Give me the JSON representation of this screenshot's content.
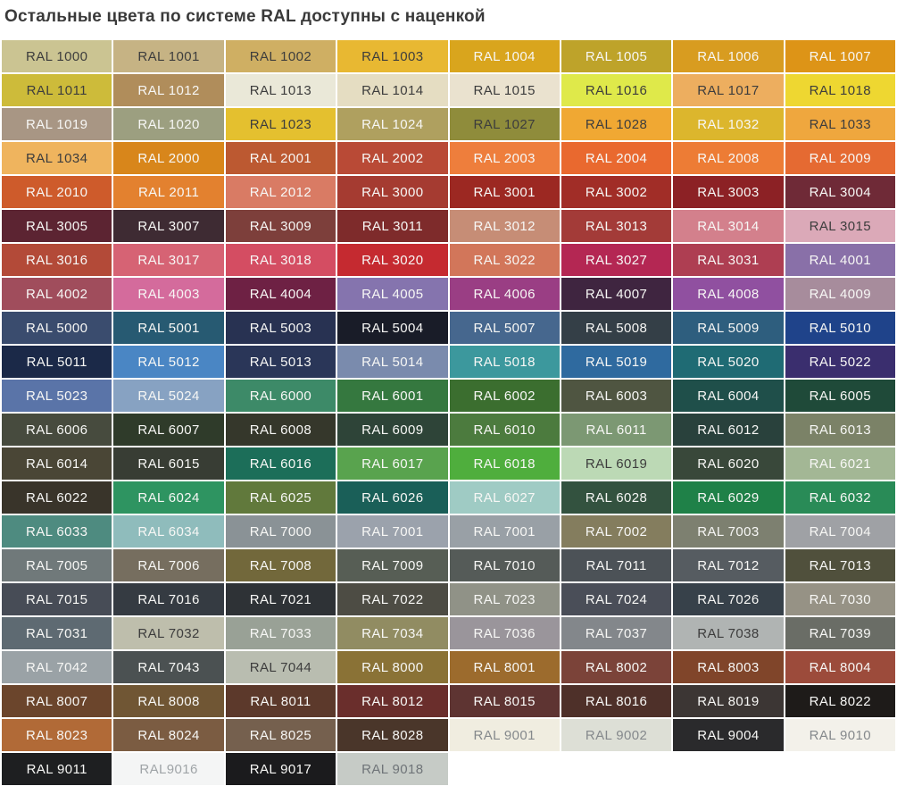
{
  "page": {
    "title": "Остальные цвета по системе RAL доступны с наценкой",
    "title_color": "#3A3A3A",
    "background": "#FFFFFF"
  },
  "grid": {
    "columns": 8,
    "rows": [
      [
        {
          "code": "RAL 1000",
          "bg": "#CBC492",
          "fg": "#3D3D3D"
        },
        {
          "code": "RAL 1001",
          "bg": "#C6B384",
          "fg": "#3D3D3D"
        },
        {
          "code": "RAL 1002",
          "bg": "#CFAF63",
          "fg": "#3D3D3D"
        },
        {
          "code": "RAL 1003",
          "bg": "#E8B832",
          "fg": "#3D3D3D"
        },
        {
          "code": "RAL 1004",
          "bg": "#D9A51D",
          "fg": "#F7F7F5"
        },
        {
          "code": "RAL 1005",
          "bg": "#BEA32A",
          "fg": "#F7F7F5"
        },
        {
          "code": "RAL 1006",
          "bg": "#D89C20",
          "fg": "#F7F7F5"
        },
        {
          "code": "RAL 1007",
          "bg": "#DD9417",
          "fg": "#F7F7F5"
        }
      ],
      [
        {
          "code": "RAL 1011",
          "bg": "#CDBB3A",
          "fg": "#3D3D3D"
        },
        {
          "code": "RAL 1012",
          "bg": "#B08D5B",
          "fg": "#F7F7F5"
        },
        {
          "code": "RAL 1013",
          "bg": "#EAE8D8",
          "fg": "#3D3D3D"
        },
        {
          "code": "RAL 1014",
          "bg": "#E5DDC2",
          "fg": "#3D3D3D"
        },
        {
          "code": "RAL 1015",
          "bg": "#EAE2CF",
          "fg": "#3D3D3D"
        },
        {
          "code": "RAL 1016",
          "bg": "#DFE94A",
          "fg": "#3D3D3D"
        },
        {
          "code": "RAL 1017",
          "bg": "#EDAE5F",
          "fg": "#3D3D3D"
        },
        {
          "code": "RAL 1018",
          "bg": "#EED731",
          "fg": "#3D3D3D"
        }
      ],
      [
        {
          "code": "RAL 1019",
          "bg": "#A89684",
          "fg": "#F7F7F5"
        },
        {
          "code": "RAL 1020",
          "bg": "#9C9F80",
          "fg": "#F7F7F5"
        },
        {
          "code": "RAL 1023",
          "bg": "#E4C02F",
          "fg": "#3D3D3D"
        },
        {
          "code": "RAL 1024",
          "bg": "#AFA05F",
          "fg": "#F7F7F5"
        },
        {
          "code": "RAL 1027",
          "bg": "#8F8C3B",
          "fg": "#3D3D3D"
        },
        {
          "code": "RAL 1028",
          "bg": "#F0A833",
          "fg": "#3D3D3D"
        },
        {
          "code": "RAL 1032",
          "bg": "#DCB62D",
          "fg": "#F7F7F5"
        },
        {
          "code": "RAL 1033",
          "bg": "#EFA73E",
          "fg": "#3D3D3D"
        }
      ],
      [
        {
          "code": "RAL 1034",
          "bg": "#EFB45E",
          "fg": "#3D3D3D"
        },
        {
          "code": "RAL 2000",
          "bg": "#D8861B",
          "fg": "#F7F7F5"
        },
        {
          "code": "RAL 2001",
          "bg": "#BC5931",
          "fg": "#F7F7F5"
        },
        {
          "code": "RAL 2002",
          "bg": "#B94A36",
          "fg": "#F7F7F5"
        },
        {
          "code": "RAL 2003",
          "bg": "#EE7E3C",
          "fg": "#F7F7F5"
        },
        {
          "code": "RAL 2004",
          "bg": "#E9692F",
          "fg": "#F7F7F5"
        },
        {
          "code": "RAL 2008",
          "bg": "#ED7C35",
          "fg": "#F7F7F5"
        },
        {
          "code": "RAL 2009",
          "bg": "#E56A32",
          "fg": "#F7F7F5"
        }
      ],
      [
        {
          "code": "RAL 2010",
          "bg": "#CE5B2B",
          "fg": "#F7F7F5"
        },
        {
          "code": "RAL 2011",
          "bg": "#E3812F",
          "fg": "#F7F7F5"
        },
        {
          "code": "RAL 2012",
          "bg": "#D97B64",
          "fg": "#F7F7F5"
        },
        {
          "code": "RAL 3000",
          "bg": "#A53B31",
          "fg": "#F7F7F5"
        },
        {
          "code": "RAL 3001",
          "bg": "#9C2822",
          "fg": "#F7F7F5"
        },
        {
          "code": "RAL 3002",
          "bg": "#A12D27",
          "fg": "#F7F7F5"
        },
        {
          "code": "RAL 3003",
          "bg": "#8C2125",
          "fg": "#F7F7F5"
        },
        {
          "code": "RAL 3004",
          "bg": "#6F2A37",
          "fg": "#F7F7F5"
        }
      ],
      [
        {
          "code": "RAL 3005",
          "bg": "#5C2432",
          "fg": "#F7F7F5"
        },
        {
          "code": "RAL 3007",
          "bg": "#3E2B33",
          "fg": "#F7F7F5"
        },
        {
          "code": "RAL 3009",
          "bg": "#7D3F3B",
          "fg": "#F7F7F5"
        },
        {
          "code": "RAL 3011",
          "bg": "#7E2B2B",
          "fg": "#F7F7F5"
        },
        {
          "code": "RAL 3012",
          "bg": "#C68D76",
          "fg": "#F7F7F5"
        },
        {
          "code": "RAL 3013",
          "bg": "#A33B38",
          "fg": "#F7F7F5"
        },
        {
          "code": "RAL 3014",
          "bg": "#D3808C",
          "fg": "#F7F7F5"
        },
        {
          "code": "RAL 3015",
          "bg": "#DBA9B8",
          "fg": "#3D3D3D"
        }
      ],
      [
        {
          "code": "RAL 3016",
          "bg": "#B34A38",
          "fg": "#F7F7F5"
        },
        {
          "code": "RAL 3017",
          "bg": "#D66374",
          "fg": "#F7F7F5"
        },
        {
          "code": "RAL 3018",
          "bg": "#D44D62",
          "fg": "#F7F7F5"
        },
        {
          "code": "RAL 3020",
          "bg": "#C52A30",
          "fg": "#F7F7F5"
        },
        {
          "code": "RAL 3022",
          "bg": "#D2765A",
          "fg": "#F7F7F5"
        },
        {
          "code": "RAL 3027",
          "bg": "#B42753",
          "fg": "#F7F7F5"
        },
        {
          "code": "RAL 3031",
          "bg": "#AE3E52",
          "fg": "#F7F7F5"
        },
        {
          "code": "RAL 4001",
          "bg": "#8970A8",
          "fg": "#F7F7F5"
        }
      ],
      [
        {
          "code": "RAL 4002",
          "bg": "#A04D5C",
          "fg": "#F7F7F5"
        },
        {
          "code": "RAL 4003",
          "bg": "#D46B9C",
          "fg": "#F7F7F5"
        },
        {
          "code": "RAL 4004",
          "bg": "#6E2144",
          "fg": "#F7F7F5"
        },
        {
          "code": "RAL 4005",
          "bg": "#8574AE",
          "fg": "#F7F7F5"
        },
        {
          "code": "RAL 4006",
          "bg": "#9A3E84",
          "fg": "#F7F7F5"
        },
        {
          "code": "RAL 4007",
          "bg": "#3F2540",
          "fg": "#F7F7F5"
        },
        {
          "code": "RAL 4008",
          "bg": "#9050A0",
          "fg": "#F7F7F5"
        },
        {
          "code": "RAL 4009",
          "bg": "#A78C9C",
          "fg": "#F7F7F5"
        }
      ],
      [
        {
          "code": "RAL 5000",
          "bg": "#3A4C6E",
          "fg": "#F7F7F5"
        },
        {
          "code": "RAL 5001",
          "bg": "#275A72",
          "fg": "#F7F7F5"
        },
        {
          "code": "RAL 5003",
          "bg": "#283252",
          "fg": "#F7F7F5"
        },
        {
          "code": "RAL 5004",
          "bg": "#191C28",
          "fg": "#F7F7F5"
        },
        {
          "code": "RAL 5007",
          "bg": "#46678E",
          "fg": "#F7F7F5"
        },
        {
          "code": "RAL 5008",
          "bg": "#343F47",
          "fg": "#F7F7F5"
        },
        {
          "code": "RAL 5009",
          "bg": "#2E5E7E",
          "fg": "#F7F7F5"
        },
        {
          "code": "RAL 5010",
          "bg": "#1F438A",
          "fg": "#F7F7F5"
        }
      ],
      [
        {
          "code": "RAL 5011",
          "bg": "#1B2948",
          "fg": "#F7F7F5"
        },
        {
          "code": "RAL 5012",
          "bg": "#4A86C4",
          "fg": "#F7F7F5"
        },
        {
          "code": "RAL 5013",
          "bg": "#2A3658",
          "fg": "#F7F7F5"
        },
        {
          "code": "RAL 5014",
          "bg": "#7A8BAD",
          "fg": "#F7F7F5"
        },
        {
          "code": "RAL 5018",
          "bg": "#3C989D",
          "fg": "#F7F7F5"
        },
        {
          "code": "RAL 5019",
          "bg": "#2F6A9F",
          "fg": "#F7F7F5"
        },
        {
          "code": "RAL 5020",
          "bg": "#1F6B74",
          "fg": "#F7F7F5"
        },
        {
          "code": "RAL 5022",
          "bg": "#3A2E6E",
          "fg": "#F7F7F5"
        }
      ],
      [
        {
          "code": "RAL 5023",
          "bg": "#5A74A8",
          "fg": "#F7F7F5"
        },
        {
          "code": "RAL 5024",
          "bg": "#87A2C2",
          "fg": "#F7F7F5"
        },
        {
          "code": "RAL 6000",
          "bg": "#3D8A68",
          "fg": "#F7F7F5"
        },
        {
          "code": "RAL 6001",
          "bg": "#35783F",
          "fg": "#F7F7F5"
        },
        {
          "code": "RAL 6002",
          "bg": "#3B6E2F",
          "fg": "#F7F7F5"
        },
        {
          "code": "RAL 6003",
          "bg": "#4F5541",
          "fg": "#F7F7F5"
        },
        {
          "code": "RAL 6004",
          "bg": "#1F4F4A",
          "fg": "#F7F7F5"
        },
        {
          "code": "RAL 6005",
          "bg": "#1F4A39",
          "fg": "#F7F7F5"
        }
      ],
      [
        {
          "code": "RAL 6006",
          "bg": "#474B3E",
          "fg": "#F7F7F5"
        },
        {
          "code": "RAL 6007",
          "bg": "#2F3B2A",
          "fg": "#F7F7F5"
        },
        {
          "code": "RAL 6008",
          "bg": "#35372B",
          "fg": "#F7F7F5"
        },
        {
          "code": "RAL 6009",
          "bg": "#2E4438",
          "fg": "#F7F7F5"
        },
        {
          "code": "RAL 6010",
          "bg": "#4C7B3E",
          "fg": "#F7F7F5"
        },
        {
          "code": "RAL 6011",
          "bg": "#7C9873",
          "fg": "#F7F7F5"
        },
        {
          "code": "RAL 6012",
          "bg": "#29413C",
          "fg": "#F7F7F5"
        },
        {
          "code": "RAL 6013",
          "bg": "#7B8267",
          "fg": "#F7F7F5"
        }
      ],
      [
        {
          "code": "RAL 6014",
          "bg": "#4A4636",
          "fg": "#F7F7F5"
        },
        {
          "code": "RAL 6015",
          "bg": "#383D34",
          "fg": "#F7F7F5"
        },
        {
          "code": "RAL 6016",
          "bg": "#1C6E59",
          "fg": "#F7F7F5"
        },
        {
          "code": "RAL 6017",
          "bg": "#59A34E",
          "fg": "#F7F7F5"
        },
        {
          "code": "RAL 6018",
          "bg": "#4FAE3D",
          "fg": "#F7F7F5"
        },
        {
          "code": "RAL 6019",
          "bg": "#BCD9B5",
          "fg": "#3D3D3D"
        },
        {
          "code": "RAL 6020",
          "bg": "#39483A",
          "fg": "#F7F7F5"
        },
        {
          "code": "RAL 6021",
          "bg": "#A3B795",
          "fg": "#F7F7F5"
        }
      ],
      [
        {
          "code": "RAL 6022",
          "bg": "#39342A",
          "fg": "#F7F7F5"
        },
        {
          "code": "RAL 6024",
          "bg": "#2E9461",
          "fg": "#F7F7F5"
        },
        {
          "code": "RAL 6025",
          "bg": "#61793C",
          "fg": "#F7F7F5"
        },
        {
          "code": "RAL 6026",
          "bg": "#1A5F58",
          "fg": "#F7F7F5"
        },
        {
          "code": "RAL 6027",
          "bg": "#9FCBC4",
          "fg": "#F7F7F5"
        },
        {
          "code": "RAL 6028",
          "bg": "#33523F",
          "fg": "#F7F7F5"
        },
        {
          "code": "RAL 6029",
          "bg": "#1F8148",
          "fg": "#F7F7F5"
        },
        {
          "code": "RAL 6032",
          "bg": "#298B57",
          "fg": "#F7F7F5"
        }
      ],
      [
        {
          "code": "RAL 6033",
          "bg": "#4E8B80",
          "fg": "#F7F7F5"
        },
        {
          "code": "RAL 6034",
          "bg": "#8FBCBC",
          "fg": "#F7F7F5"
        },
        {
          "code": "RAL 7000",
          "bg": "#8A9296",
          "fg": "#F7F7F5"
        },
        {
          "code": "RAL 7001",
          "bg": "#9BA2AC",
          "fg": "#F7F7F5"
        },
        {
          "code": "RAL 7001",
          "bg": "#99A0A6",
          "fg": "#F7F7F5"
        },
        {
          "code": "RAL 7002",
          "bg": "#847D5E",
          "fg": "#F7F7F5"
        },
        {
          "code": "RAL 7003",
          "bg": "#7D8070",
          "fg": "#F7F7F5"
        },
        {
          "code": "RAL 7004",
          "bg": "#9FA1A5",
          "fg": "#F7F7F5"
        }
      ],
      [
        {
          "code": "RAL 7005",
          "bg": "#70797A",
          "fg": "#F7F7F5"
        },
        {
          "code": "RAL 7006",
          "bg": "#766E5F",
          "fg": "#F7F7F5"
        },
        {
          "code": "RAL 7008",
          "bg": "#72683B",
          "fg": "#F7F7F5"
        },
        {
          "code": "RAL 7009",
          "bg": "#575E55",
          "fg": "#F7F7F5"
        },
        {
          "code": "RAL 7010",
          "bg": "#555B58",
          "fg": "#F7F7F5"
        },
        {
          "code": "RAL 7011",
          "bg": "#4C5257",
          "fg": "#F7F7F5"
        },
        {
          "code": "RAL 7012",
          "bg": "#565C61",
          "fg": "#F7F7F5"
        },
        {
          "code": "RAL 7013",
          "bg": "#50503C",
          "fg": "#F7F7F5"
        }
      ],
      [
        {
          "code": "RAL 7015",
          "bg": "#474C56",
          "fg": "#F7F7F5"
        },
        {
          "code": "RAL 7016",
          "bg": "#353B42",
          "fg": "#F7F7F5"
        },
        {
          "code": "RAL 7021",
          "bg": "#2E3236",
          "fg": "#F7F7F5"
        },
        {
          "code": "RAL 7022",
          "bg": "#4D4C44",
          "fg": "#F7F7F5"
        },
        {
          "code": "RAL 7023",
          "bg": "#909287",
          "fg": "#F7F7F5"
        },
        {
          "code": "RAL 7024",
          "bg": "#4A4E58",
          "fg": "#F7F7F5"
        },
        {
          "code": "RAL 7026",
          "bg": "#37414A",
          "fg": "#F7F7F5"
        },
        {
          "code": "RAL 7030",
          "bg": "#969285",
          "fg": "#F7F7F5"
        }
      ],
      [
        {
          "code": "RAL 7031",
          "bg": "#5E6A72",
          "fg": "#F7F7F5"
        },
        {
          "code": "RAL 7032",
          "bg": "#BEBEAC",
          "fg": "#3D3D3D"
        },
        {
          "code": "RAL 7033",
          "bg": "#99A196",
          "fg": "#F7F7F5"
        },
        {
          "code": "RAL 7034",
          "bg": "#918C62",
          "fg": "#F7F7F5"
        },
        {
          "code": "RAL 7036",
          "bg": "#9A959B",
          "fg": "#F7F7F5"
        },
        {
          "code": "RAL 7037",
          "bg": "#83878B",
          "fg": "#F7F7F5"
        },
        {
          "code": "RAL 7038",
          "bg": "#B0B4B3",
          "fg": "#3D3D3D"
        },
        {
          "code": "RAL 7039",
          "bg": "#6A6D66",
          "fg": "#F7F7F5"
        }
      ],
      [
        {
          "code": "RAL 7042",
          "bg": "#9AA2A6",
          "fg": "#F7F7F5"
        },
        {
          "code": "RAL 7043",
          "bg": "#4B5152",
          "fg": "#F7F7F5"
        },
        {
          "code": "RAL 7044",
          "bg": "#B9BDB0",
          "fg": "#3D3D3D"
        },
        {
          "code": "RAL 8000",
          "bg": "#8A7236",
          "fg": "#F7F7F5"
        },
        {
          "code": "RAL 8001",
          "bg": "#9C6B2D",
          "fg": "#F7F7F5"
        },
        {
          "code": "RAL 8002",
          "bg": "#7B4339",
          "fg": "#F7F7F5"
        },
        {
          "code": "RAL 8003",
          "bg": "#80452A",
          "fg": "#F7F7F5"
        },
        {
          "code": "RAL 8004",
          "bg": "#9C4B3B",
          "fg": "#F7F7F5"
        }
      ],
      [
        {
          "code": "RAL 8007",
          "bg": "#6B452C",
          "fg": "#F7F7F5"
        },
        {
          "code": "RAL 8008",
          "bg": "#705634",
          "fg": "#F7F7F5"
        },
        {
          "code": "RAL 8011",
          "bg": "#5C392B",
          "fg": "#F7F7F5"
        },
        {
          "code": "RAL 8012",
          "bg": "#6A2E2C",
          "fg": "#F7F7F5"
        },
        {
          "code": "RAL 8015",
          "bg": "#5E3432",
          "fg": "#F7F7F5"
        },
        {
          "code": "RAL 8016",
          "bg": "#4E3029",
          "fg": "#F7F7F5"
        },
        {
          "code": "RAL 8019",
          "bg": "#3C3634",
          "fg": "#F7F7F5"
        },
        {
          "code": "RAL 8022",
          "bg": "#1E1B19",
          "fg": "#F7F7F5"
        }
      ],
      [
        {
          "code": "RAL 8023",
          "bg": "#B16A37",
          "fg": "#F7F7F5"
        },
        {
          "code": "RAL 8024",
          "bg": "#7B5C42",
          "fg": "#F7F7F5"
        },
        {
          "code": "RAL 8025",
          "bg": "#75604E",
          "fg": "#F7F7F5"
        },
        {
          "code": "RAL 8028",
          "bg": "#4A362A",
          "fg": "#F7F7F5"
        },
        {
          "code": "RAL 9001",
          "bg": "#F0EDE0",
          "fg": "#85898C"
        },
        {
          "code": "RAL 9002",
          "bg": "#DDDFD6",
          "fg": "#85898C"
        },
        {
          "code": "RAL 9004",
          "bg": "#2A2A2C",
          "fg": "#F7F7F5"
        },
        {
          "code": "RAL 9010",
          "bg": "#F3F1EA",
          "fg": "#85898C"
        }
      ],
      [
        {
          "code": "RAL 9011",
          "bg": "#1E1F21",
          "fg": "#F7F7F5"
        },
        {
          "code": "RAL9016",
          "bg": "#F4F5F5",
          "fg": "#9FA4A7"
        },
        {
          "code": "RAL 9017",
          "bg": "#1B1B1D",
          "fg": "#F7F7F5"
        },
        {
          "code": "RAL 9018",
          "bg": "#C6CBC6",
          "fg": "#6F7478"
        }
      ]
    ]
  }
}
